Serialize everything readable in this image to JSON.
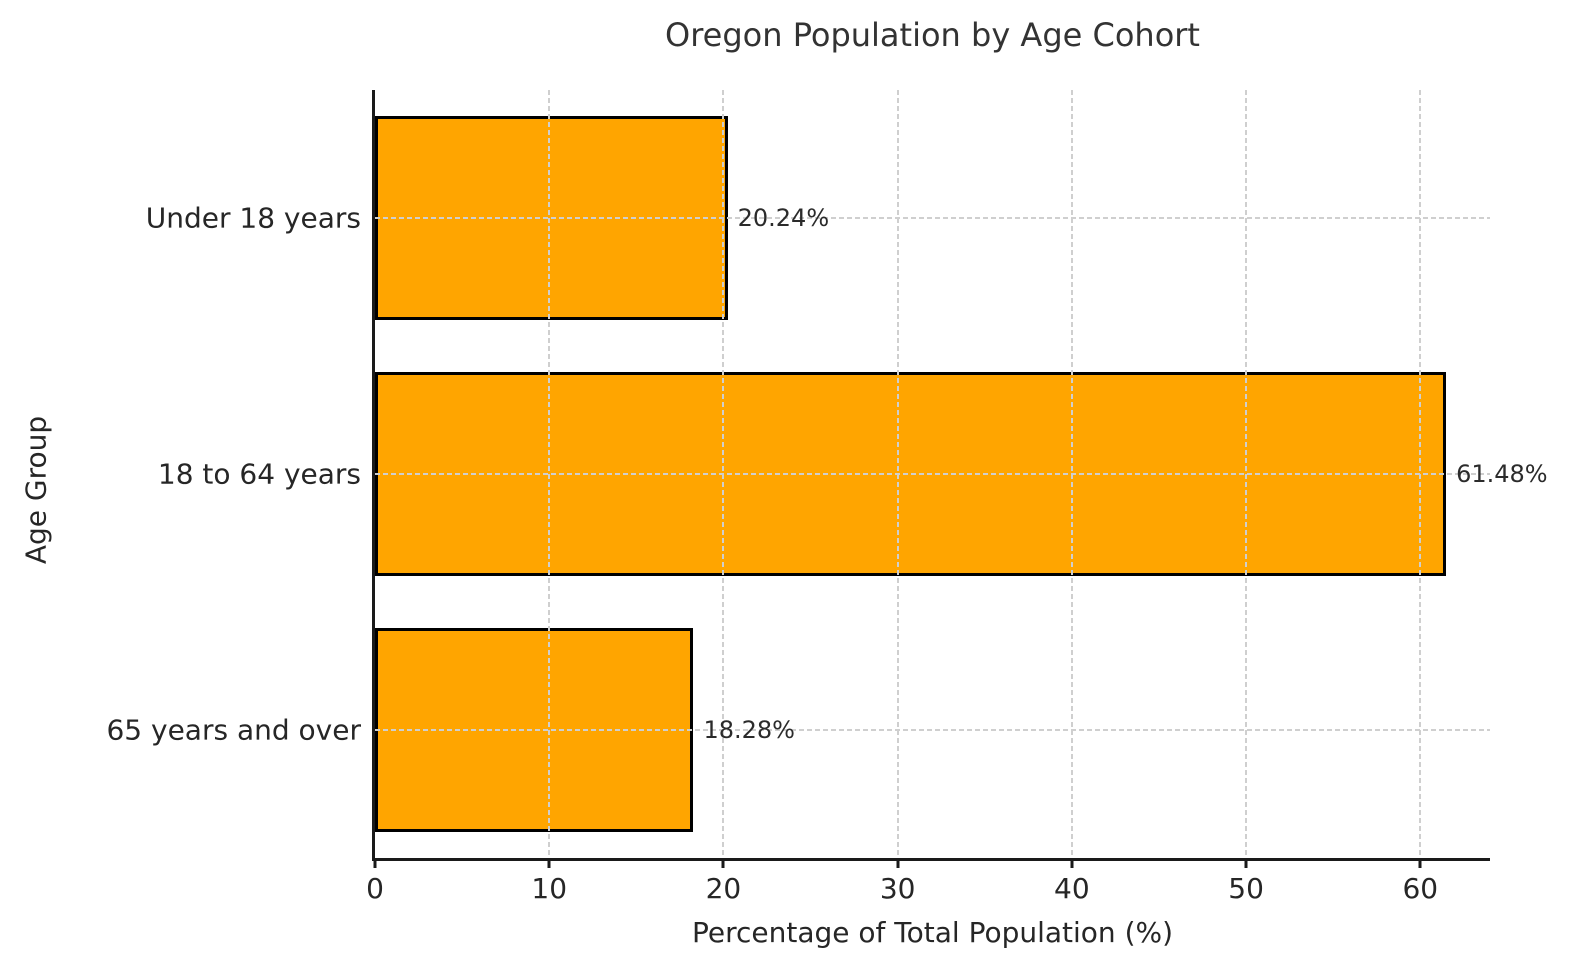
{
  "chart_data": {
    "type": "bar",
    "orientation": "horizontal",
    "title": "Oregon Population by Age Cohort",
    "xlabel": "Percentage of Total Population (%)",
    "ylabel": "Age Group",
    "categories": [
      "Under 18 years",
      "18 to 64 years",
      "65 years and over"
    ],
    "values": [
      20.24,
      61.48,
      18.28
    ],
    "value_labels": [
      "20.24%",
      "61.48%",
      "18.28%"
    ],
    "x_ticks": [
      0,
      10,
      20,
      30,
      40,
      50,
      60
    ],
    "xlim": [
      0,
      64
    ],
    "bar_color": "#FFA500",
    "bar_edge_color": "#000000",
    "grid": true,
    "grid_style": "dashed",
    "grid_color": "#cfcfcf",
    "background_color": "#ffffff",
    "legend": false
  }
}
